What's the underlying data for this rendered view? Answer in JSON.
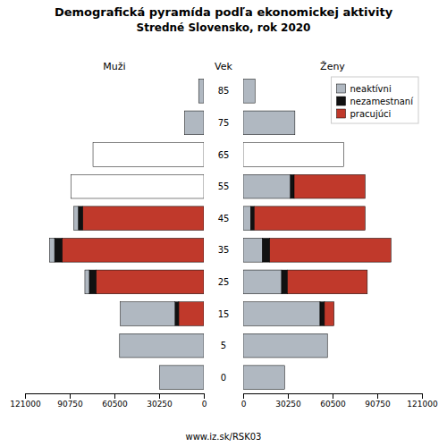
{
  "title": "Demografická pyramída podľa ekonomickej aktivity",
  "subtitle": "Stredné Slovensko, rok 2020",
  "ylabel": "Vek",
  "annotations": [
    "www.iz.sk/RSK03"
  ],
  "chart_data": [
    {
      "type": "bar",
      "orientation": "horizontal",
      "stacked": true,
      "title": "Muži",
      "categories": [
        85,
        75,
        65,
        55,
        45,
        35,
        25,
        15,
        5,
        0
      ],
      "xlim": [
        0,
        121000
      ],
      "xticks": [
        0,
        30250,
        60500,
        90750,
        121000
      ],
      "series": [
        {
          "color": "#c0392b",
          "values": [
            0,
            0,
            0,
            0,
            82000,
            96000,
            73000,
            17000,
            0,
            0
          ]
        },
        {
          "color": "#111111",
          "values": [
            0,
            0,
            0,
            0,
            3000,
            5000,
            4500,
            2500,
            0,
            0
          ]
        },
        {
          "colors": [
            "#b0b8c1",
            "#b0b8c1",
            "#ffffff",
            "#ffffff",
            "#b0b8c1",
            "#b0b8c1",
            "#b0b8c1",
            "#b0b8c1",
            "#b0b8c1",
            "#b0b8c1"
          ],
          "values": [
            3500,
            13000,
            75000,
            90000,
            3000,
            3500,
            3000,
            37000,
            57000,
            30000
          ]
        }
      ]
    },
    {
      "type": "bar",
      "orientation": "horizontal",
      "stacked": true,
      "title": "Ženy",
      "categories": [
        85,
        75,
        65,
        55,
        45,
        35,
        25,
        15,
        5,
        0
      ],
      "xlim": [
        0,
        121000
      ],
      "xticks": [
        0,
        30250,
        60500,
        90750,
        121000
      ],
      "legend": "upper right",
      "series": [
        {
          "name": "neaktívni",
          "color": "#b0b8c1",
          "colors": [
            "#b0b8c1",
            "#b0b8c1",
            "#ffffff",
            "#b0b8c1",
            "#b0b8c1",
            "#b0b8c1",
            "#b0b8c1",
            "#b0b8c1",
            "#b0b8c1",
            "#b0b8c1"
          ],
          "values": [
            8000,
            35000,
            68000,
            32000,
            5000,
            13000,
            26000,
            52000,
            57000,
            28000
          ]
        },
        {
          "name": "nezamestnaní",
          "color": "#111111",
          "values": [
            0,
            0,
            0,
            2500,
            2500,
            5000,
            4000,
            3000,
            0,
            0
          ]
        },
        {
          "name": "pracujúci",
          "color": "#c0392b",
          "values": [
            0,
            0,
            0,
            48000,
            75000,
            82000,
            54000,
            6500,
            0,
            0
          ]
        }
      ]
    }
  ]
}
